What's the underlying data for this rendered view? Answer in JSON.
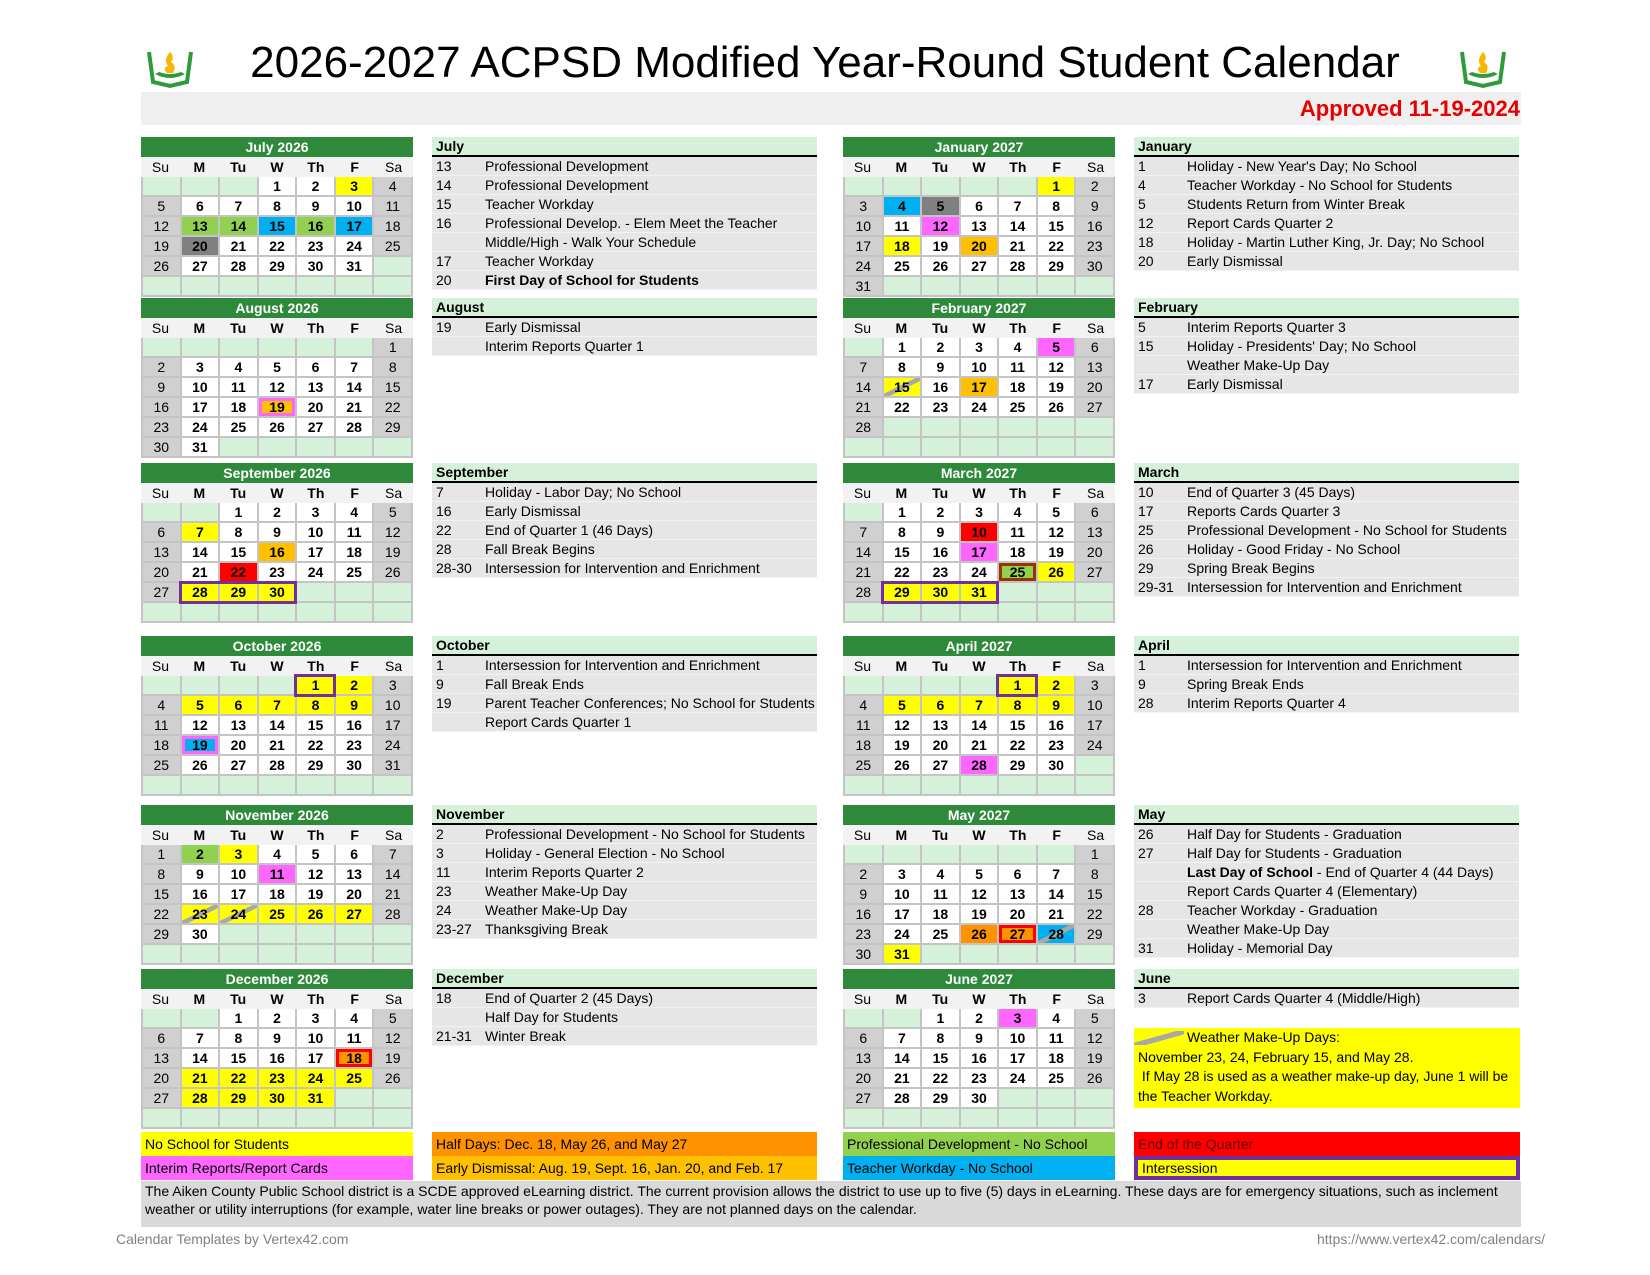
{
  "header": {
    "title": "2026-2027 ACPSD Modified Year-Round Student Calendar",
    "approved": "Approved 11-19-2024",
    "logo_icon": "book-flame-logo"
  },
  "weekdays": [
    "Su",
    "M",
    "Tu",
    "W",
    "Th",
    "F",
    "Sa"
  ],
  "colors": {
    "no_school": "#ffff00",
    "prof_dev": "#92d050",
    "teacher_workday": "#00b0f0",
    "interim_reports": "#ff66ff",
    "early_dismissal": "#ffc000",
    "half_day": "#ff9200",
    "end_quarter": "#ff0000",
    "first_day": "#808080",
    "intersession_border": "#7030a0",
    "header_green": "#2e8a3a"
  },
  "calendars": [
    {
      "title": "July 2026",
      "year": 2026,
      "month": 7,
      "col": 0,
      "slot": 0,
      "marks": {
        "3": "ns",
        "13": "pd",
        "14": "pd",
        "15": "tw",
        "16": "pd",
        "17": "tw",
        "20": "first"
      }
    },
    {
      "title": "August 2026",
      "year": 2026,
      "month": 8,
      "col": 0,
      "slot": 1,
      "marks": {
        "19": "ed"
      },
      "outlines": {
        "19": "#ff66ff"
      }
    },
    {
      "title": "September 2026",
      "year": 2026,
      "month": 9,
      "col": 0,
      "slot": 2,
      "marks": {
        "7": "ns",
        "16": "ed",
        "22": "eq",
        "28": "ns",
        "29": "ns",
        "30": "ns"
      },
      "intersession": [
        [
          28,
          30
        ]
      ]
    },
    {
      "title": "October 2026",
      "year": 2026,
      "month": 10,
      "col": 0,
      "slot": 3,
      "marks": {
        "1": "ns",
        "2": "ns",
        "5": "ns",
        "6": "ns",
        "7": "ns",
        "8": "ns",
        "9": "ns",
        "19": "tw"
      },
      "outlines": {
        "19": "#ff66ff"
      },
      "intersession": [
        [
          1,
          1
        ]
      ]
    },
    {
      "title": "November 2026",
      "year": 2026,
      "month": 11,
      "col": 0,
      "slot": 4,
      "marks": {
        "2": "pd",
        "3": "ns",
        "11": "ir",
        "23": "ns",
        "24": "ns",
        "25": "ns",
        "26": "ns",
        "27": "ns"
      },
      "weather": [
        23,
        24
      ]
    },
    {
      "title": "December 2026",
      "year": 2026,
      "month": 12,
      "col": 0,
      "slot": 5,
      "marks": {
        "18": "hd",
        "21": "ns",
        "22": "ns",
        "23": "ns",
        "24": "ns",
        "25": "ns",
        "28": "ns",
        "29": "ns",
        "30": "ns",
        "31": "ns"
      },
      "outlines": {
        "18": "#ff0000"
      }
    },
    {
      "title": "January 2027",
      "year": 2027,
      "month": 1,
      "col": 1,
      "slot": 0,
      "marks": {
        "1": "ns",
        "4": "tw",
        "5": "first",
        "12": "ir",
        "18": "ns",
        "20": "ed"
      }
    },
    {
      "title": "February 2027",
      "year": 2027,
      "month": 2,
      "col": 1,
      "slot": 1,
      "marks": {
        "5": "ir",
        "15": "ns",
        "17": "ed"
      },
      "weather": [
        15
      ]
    },
    {
      "title": "March 2027",
      "year": 2027,
      "month": 3,
      "col": 1,
      "slot": 2,
      "marks": {
        "10": "eq",
        "17": "ir",
        "25": "pd",
        "26": "ns",
        "29": "ns",
        "30": "ns",
        "31": "ns"
      },
      "outlines": {
        "25": "#993300"
      },
      "intersession": [
        [
          29,
          31
        ]
      ]
    },
    {
      "title": "April 2027",
      "year": 2027,
      "month": 4,
      "col": 1,
      "slot": 3,
      "marks": {
        "1": "ns",
        "2": "ns",
        "5": "ns",
        "6": "ns",
        "7": "ns",
        "8": "ns",
        "9": "ns",
        "28": "ir"
      },
      "intersession": [
        [
          1,
          1
        ]
      ]
    },
    {
      "title": "May 2027",
      "year": 2027,
      "month": 5,
      "col": 1,
      "slot": 4,
      "marks": {
        "26": "hd",
        "27": "hd",
        "28": "tw",
        "31": "ns"
      },
      "outlines": {
        "27": "#ff0000"
      },
      "weather": [
        28
      ]
    },
    {
      "title": "June 2027",
      "year": 2027,
      "month": 6,
      "col": 1,
      "slot": 5,
      "marks": {
        "3": "ir"
      }
    }
  ],
  "events": [
    {
      "header": "July",
      "col": 0,
      "slot": 0,
      "items": [
        {
          "d": "13",
          "t": "Professional Development"
        },
        {
          "d": "14",
          "t": "Professional Development"
        },
        {
          "d": "15",
          "t": "Teacher Workday"
        },
        {
          "d": "16",
          "t": "Professional Develop. - Elem Meet the Teacher"
        },
        {
          "d": "",
          "t": "Middle/High - Walk Your Schedule"
        },
        {
          "d": "17",
          "t": "Teacher Workday"
        },
        {
          "d": "20",
          "b": "First Day of School for Students",
          "t": ""
        }
      ]
    },
    {
      "header": "August",
      "col": 0,
      "slot": 1,
      "items": [
        {
          "d": "19",
          "t": "Early Dismissal"
        },
        {
          "d": "",
          "t": "Interim Reports Quarter 1"
        }
      ]
    },
    {
      "header": "September",
      "col": 0,
      "slot": 2,
      "items": [
        {
          "d": "7",
          "t": "Holiday - Labor Day; No School"
        },
        {
          "d": "16",
          "t": "Early Dismissal"
        },
        {
          "d": "22",
          "t": "End of Quarter 1 (46 Days)"
        },
        {
          "d": "28",
          "t": "Fall Break Begins"
        },
        {
          "d": "28-30",
          "t": "Intersession for Intervention and Enrichment"
        }
      ]
    },
    {
      "header": "October",
      "col": 0,
      "slot": 3,
      "items": [
        {
          "d": "1",
          "t": "Intersession for Intervention and Enrichment"
        },
        {
          "d": "9",
          "t": "Fall Break Ends"
        },
        {
          "d": "19",
          "t": "Parent Teacher Conferences; No School for Students"
        },
        {
          "d": "",
          "t": "Report Cards Quarter 1"
        }
      ]
    },
    {
      "header": "November",
      "col": 0,
      "slot": 4,
      "items": [
        {
          "d": "2",
          "t": "Professional Development - No School for Students"
        },
        {
          "d": "3",
          "t": "Holiday - General Election - No School"
        },
        {
          "d": "11",
          "t": "Interim Reports Quarter 2"
        },
        {
          "d": "23",
          "t": "Weather Make-Up Day"
        },
        {
          "d": "24",
          "t": "Weather Make-Up Day"
        },
        {
          "d": "23-27",
          "t": "Thanksgiving Break"
        }
      ]
    },
    {
      "header": "December",
      "col": 0,
      "slot": 5,
      "items": [
        {
          "d": "18",
          "t": "End of Quarter 2 (45 Days)"
        },
        {
          "d": "",
          "t": "Half Day for Students"
        },
        {
          "d": "21-31",
          "t": "Winter Break"
        }
      ]
    },
    {
      "header": "January",
      "col": 1,
      "slot": 0,
      "items": [
        {
          "d": "1",
          "t": "Holiday - New Year's Day; No School"
        },
        {
          "d": "4",
          "t": "Teacher Workday - No School for Students"
        },
        {
          "d": "5",
          "t": "Students Return from Winter Break"
        },
        {
          "d": "12",
          "t": "Report Cards Quarter 2"
        },
        {
          "d": "18",
          "t": "Holiday - Martin Luther King, Jr. Day; No School"
        },
        {
          "d": "20",
          "t": "Early Dismissal"
        }
      ]
    },
    {
      "header": "February",
      "col": 1,
      "slot": 1,
      "items": [
        {
          "d": "5",
          "t": "Interim Reports Quarter 3"
        },
        {
          "d": "15",
          "t": "Holiday - Presidents' Day; No School"
        },
        {
          "d": "",
          "t": "Weather Make-Up Day"
        },
        {
          "d": "17",
          "t": "Early Dismissal"
        }
      ]
    },
    {
      "header": "March",
      "col": 1,
      "slot": 2,
      "items": [
        {
          "d": "10",
          "t": "End of Quarter 3 (45 Days)"
        },
        {
          "d": "17",
          "t": "Reports Cards Quarter 3"
        },
        {
          "d": "25",
          "t": "Professional Development - No School for Students"
        },
        {
          "d": "26",
          "t": "Holiday - Good Friday - No School"
        },
        {
          "d": "29",
          "t": "Spring Break Begins"
        },
        {
          "d": "29-31",
          "t": "Intersession for Intervention and Enrichment"
        }
      ]
    },
    {
      "header": "April",
      "col": 1,
      "slot": 3,
      "items": [
        {
          "d": "1",
          "t": "Intersession for Intervention and Enrichment"
        },
        {
          "d": "9",
          "t": "Spring Break Ends"
        },
        {
          "d": "28",
          "t": "Interim Reports Quarter 4"
        }
      ]
    },
    {
      "header": "May",
      "col": 1,
      "slot": 4,
      "items": [
        {
          "d": "26",
          "t": "Half Day for Students - Graduation"
        },
        {
          "d": "27",
          "t": "Half Day for Students - Graduation"
        },
        {
          "d": "",
          "b": "Last Day of School",
          "t": " - End of Quarter 4 (44 Days)"
        },
        {
          "d": "",
          "t": "Report Cards Quarter 4 (Elementary)"
        },
        {
          "d": "28",
          "t": "Teacher Workday - Graduation"
        },
        {
          "d": "",
          "t": "Weather Make-Up Day"
        },
        {
          "d": "31",
          "t": "Holiday - Memorial Day"
        }
      ]
    },
    {
      "header": "June",
      "col": 1,
      "slot": 5,
      "items": [
        {
          "d": "3",
          "t": "Report Cards Quarter 4 (Middle/High)"
        }
      ]
    }
  ],
  "weather_note": {
    "title": "Weather Make-Up Days:",
    "line1": "November 23, 24, February 15, and May 28.",
    "line2": " If May 28 is used as a weather make-up day, June 1 will be the Teacher Workday."
  },
  "legend": [
    {
      "label": "No School for Students",
      "color": "#ffff00"
    },
    {
      "label": "Half Days: Dec. 18, May 26, and May 27",
      "color": "#ff9200"
    },
    {
      "label": "Professional Development - No School",
      "color": "#92d050"
    },
    {
      "label": "End of the Quarter",
      "color": "#ff0000"
    },
    {
      "label": "Interim Reports/Report Cards",
      "color": "#ff66ff"
    },
    {
      "label": "Early Dismissal:  Aug. 19, Sept. 16, Jan. 20, and Feb. 17",
      "color": "#ffc000"
    },
    {
      "label": "Teacher Workday - No School",
      "color": "#00b0f0"
    },
    {
      "label": "Intersession",
      "color": "#ffff00",
      "border": "#7030a0"
    }
  ],
  "elearning_note": "The Aiken County Public School district is a SCDE approved eLearning district. The current provision allows the district to use up to five (5) days in eLearning. These days are for emergency situations, such as inclement weather or utility interruptions (for example, water line breaks or power outages). They are not planned days on the calendar.",
  "footer": {
    "left": "Calendar Templates by Vertex42.com",
    "right": "https://www.vertex42.com/calendars/"
  }
}
